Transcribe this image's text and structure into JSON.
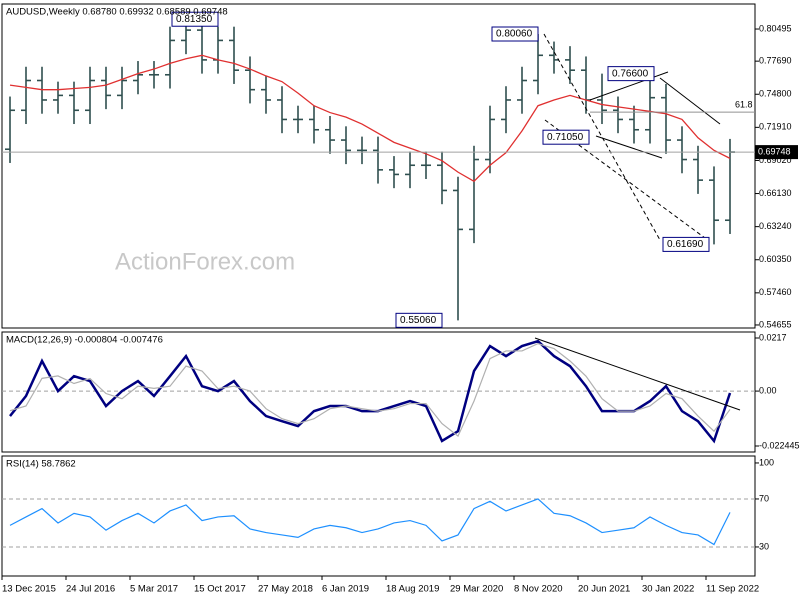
{
  "chart_data": [
    {
      "type": "ohlc",
      "title": "AUDUSD,Weekly  0.68780 0.69932 0.68589 0.69748",
      "watermark": "ActionForex.com",
      "categories": [
        "13 Dec 2015",
        null,
        null,
        null,
        "24 Jul 2016",
        null,
        null,
        null,
        "5 Mar 2017",
        null,
        null,
        null,
        "15 Oct 2017",
        null,
        null,
        null,
        "27 May 2018",
        null,
        null,
        null,
        "6 Jan 2019",
        null,
        null,
        null,
        "18 Aug 2019",
        null,
        null,
        null,
        "29 Mar 2020",
        null,
        null,
        null,
        "8 Nov 2020",
        null,
        null,
        null,
        "20 Jun 2021",
        null,
        null,
        null,
        "30 Jan 2022",
        null,
        null,
        null,
        "11 Sep 2022",
        null
      ],
      "open": [
        0.7,
        0.734,
        0.76,
        0.743,
        0.747,
        0.734,
        0.76,
        0.747,
        0.76,
        0.765,
        0.765,
        0.795,
        0.804,
        0.778,
        0.795,
        0.769,
        0.752,
        0.743,
        0.726,
        0.726,
        0.717,
        0.708,
        0.699,
        0.699,
        0.682,
        0.678,
        0.686,
        0.686,
        0.664,
        0.63,
        0.691,
        0.726,
        0.743,
        0.76,
        0.782,
        0.778,
        0.769,
        0.743,
        0.734,
        0.726,
        0.717,
        0.745,
        0.708,
        0.691,
        0.673,
        0.638
      ],
      "high": [
        0.746,
        0.772,
        0.772,
        0.759,
        0.759,
        0.772,
        0.772,
        0.772,
        0.777,
        0.777,
        0.807,
        0.8135,
        0.808,
        0.807,
        0.807,
        0.781,
        0.764,
        0.755,
        0.738,
        0.738,
        0.729,
        0.72,
        0.711,
        0.711,
        0.694,
        0.698,
        0.698,
        0.698,
        0.676,
        0.703,
        0.738,
        0.755,
        0.772,
        0.8006,
        0.794,
        0.79,
        0.781,
        0.766,
        0.746,
        0.738,
        0.766,
        0.757,
        0.72,
        0.703,
        0.685,
        0.709
      ],
      "low": [
        0.688,
        0.722,
        0.731,
        0.731,
        0.722,
        0.722,
        0.735,
        0.735,
        0.748,
        0.753,
        0.753,
        0.783,
        0.766,
        0.766,
        0.757,
        0.74,
        0.731,
        0.714,
        0.714,
        0.705,
        0.696,
        0.687,
        0.687,
        0.67,
        0.666,
        0.666,
        0.674,
        0.652,
        0.5506,
        0.618,
        0.679,
        0.714,
        0.731,
        0.748,
        0.766,
        0.757,
        0.731,
        0.722,
        0.714,
        0.705,
        0.705,
        0.696,
        0.679,
        0.661,
        0.6169,
        0.626
      ],
      "close": [
        0.734,
        0.76,
        0.743,
        0.747,
        0.734,
        0.76,
        0.747,
        0.76,
        0.765,
        0.765,
        0.795,
        0.804,
        0.778,
        0.795,
        0.769,
        0.752,
        0.743,
        0.726,
        0.726,
        0.717,
        0.708,
        0.699,
        0.699,
        0.682,
        0.678,
        0.686,
        0.686,
        0.664,
        0.63,
        0.691,
        0.726,
        0.743,
        0.76,
        0.782,
        0.778,
        0.769,
        0.743,
        0.734,
        0.726,
        0.717,
        0.745,
        0.708,
        0.691,
        0.673,
        0.638,
        0.6975
      ],
      "color": "#2f4f4f",
      "ma": {
        "color": "#e03030",
        "values": [
          0.756,
          0.754,
          0.752,
          0.752,
          0.753,
          0.754,
          0.756,
          0.761,
          0.766,
          0.77,
          0.775,
          0.779,
          0.782,
          0.778,
          0.775,
          0.77,
          0.764,
          0.759,
          0.749,
          0.738,
          0.732,
          0.728,
          0.722,
          0.714,
          0.706,
          0.701,
          0.696,
          0.69,
          0.68,
          0.672,
          0.686,
          0.697,
          0.716,
          0.738,
          0.743,
          0.747,
          0.743,
          0.739,
          0.737,
          0.735,
          0.733,
          0.731,
          0.726,
          0.71,
          0.699,
          0.692
        ]
      },
      "ylim": [
        0.5439,
        0.8268
      ],
      "yticks": [
        0.80495,
        {
          "value": 0.7769,
          "label": "0.77690"
        },
        {
          "value": 0.748,
          "label": "0.74800"
        },
        {
          "value": 0.7191,
          "label": "0.71910"
        },
        {
          "value": 0.6902,
          "label": "0.69020"
        },
        {
          "value": 0.6613,
          "label": "0.66130"
        },
        {
          "value": 0.6324,
          "label": "0.63240"
        },
        {
          "value": 0.6035,
          "label": "0.60350"
        },
        {
          "value": 0.5746,
          "label": "0.57460"
        },
        0.54655
      ],
      "last_price": 0.69748,
      "fib_level": {
        "value": 0.7324,
        "label": "61.8"
      },
      "annotations": [
        {
          "value": 0.8135,
          "label": "0.81350"
        },
        {
          "value": 0.8006,
          "label": "0.80060"
        },
        {
          "value": 0.766,
          "label": "0.76600"
        },
        {
          "value": 0.7105,
          "label": "0.71050"
        },
        {
          "value": 0.6169,
          "label": "0.61690"
        },
        {
          "value": 0.5506,
          "label": "0.55060"
        }
      ]
    },
    {
      "type": "line",
      "title": "MACD(12,26,9) -0.000804 -0.007476",
      "series": [
        {
          "color": "#000080",
          "values": [
            -0.0102,
            -0.002,
            0.0123,
            0.0,
            0.0061,
            0.0041,
            -0.0061,
            0.0,
            0.0041,
            -0.002,
            0.0061,
            0.0143,
            0.002,
            0.0,
            0.0041,
            -0.0041,
            -0.0102,
            -0.0123,
            -0.0143,
            -0.0082,
            -0.0061,
            -0.0061,
            -0.0082,
            -0.0082,
            -0.0061,
            -0.0041,
            -0.0061,
            -0.0204,
            -0.0164,
            0.0082,
            0.0184,
            0.0143,
            0.0184,
            0.0204,
            0.0143,
            0.0102,
            0.002,
            -0.0082,
            -0.0082,
            -0.0082,
            -0.0041,
            0.002,
            -0.0082,
            -0.0123,
            -0.0204,
            -0.0008
          ]
        },
        {
          "color": "#b0b0b0",
          "values": [
            -0.008,
            -0.0061,
            0.0052,
            0.0062,
            0.0031,
            0.0051,
            -0.001,
            -0.0031,
            0.002,
            0.0011,
            0.002,
            0.0102,
            0.0082,
            0.001,
            0.002,
            0.0,
            -0.0072,
            -0.0113,
            -0.0133,
            -0.0113,
            -0.0072,
            -0.0061,
            -0.0072,
            -0.0082,
            -0.0072,
            -0.0051,
            -0.0051,
            -0.0133,
            -0.0184,
            -0.0041,
            0.0133,
            0.0164,
            0.0164,
            0.0194,
            0.0174,
            0.0123,
            0.0061,
            -0.0031,
            -0.0082,
            -0.0082,
            -0.0061,
            -0.001,
            -0.0031,
            -0.0102,
            -0.0164,
            -0.0075
          ]
        }
      ],
      "ylim": [
        -0.0249,
        0.02415
      ],
      "yticks": [
        0.0217,
        {
          "value": 0,
          "label": "0.00"
        },
        -0.022445
      ],
      "levels": [
        0
      ]
    },
    {
      "type": "line",
      "title": "RSI(14) 58.7862",
      "series": [
        {
          "color": "#1e90ff",
          "values": [
            48,
            55,
            62,
            50,
            58,
            55,
            44,
            52,
            58,
            50,
            60,
            65,
            52,
            55,
            56,
            45,
            42,
            40,
            38,
            45,
            48,
            46,
            42,
            45,
            50,
            52,
            48,
            35,
            40,
            62,
            68,
            60,
            65,
            70,
            58,
            56,
            50,
            42,
            44,
            46,
            55,
            48,
            42,
            40,
            32,
            58.8
          ]
        }
      ],
      "ylim": [
        5.8,
        105.8
      ],
      "yticks": [
        100,
        70,
        30
      ],
      "levels": [
        70,
        30
      ]
    }
  ]
}
